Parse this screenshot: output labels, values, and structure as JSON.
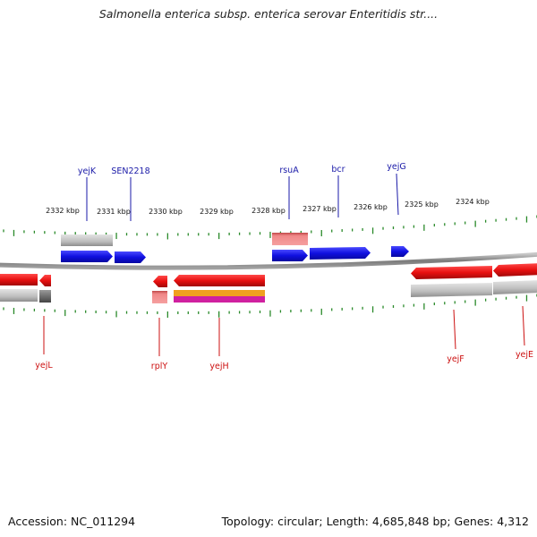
{
  "title": "Salmonella enterica subsp. enterica serovar Enteritidis str....",
  "footer": {
    "accession": "Accession: NC_011294",
    "summary": "Topology: circular; Length: 4,685,848 bp; Genes: 4,312"
  },
  "colors": {
    "forward_gene": "#1a1ae0",
    "reverse_gene": "#e01010",
    "tick": "#2a8a2a",
    "backbone": "#8a8a8a",
    "top_label": "#1a1aa8",
    "bottom_label": "#cc1010",
    "rrna_salmon": "#f08080",
    "orange_feature": "#f0a020",
    "magenta_feature": "#d020a0"
  },
  "scale_labels": [
    {
      "text": "2332 kbp"
    },
    {
      "text": "2331 kbp"
    },
    {
      "text": "2330 kbp"
    },
    {
      "text": "2329 kbp"
    },
    {
      "text": "2328 kbp"
    },
    {
      "text": "2327 kbp"
    },
    {
      "text": "2326 kbp"
    },
    {
      "text": "2325 kbp"
    },
    {
      "text": "2324 kbp"
    }
  ],
  "genes_top": [
    {
      "name": "yejK"
    },
    {
      "name": "SEN2218"
    },
    {
      "name": "rsuA"
    },
    {
      "name": "bcr"
    },
    {
      "name": "yejG"
    }
  ],
  "genes_bottom": [
    {
      "name": "yejL"
    },
    {
      "name": "rplY"
    },
    {
      "name": "yejH"
    },
    {
      "name": "yejF"
    },
    {
      "name": "yejE"
    }
  ]
}
